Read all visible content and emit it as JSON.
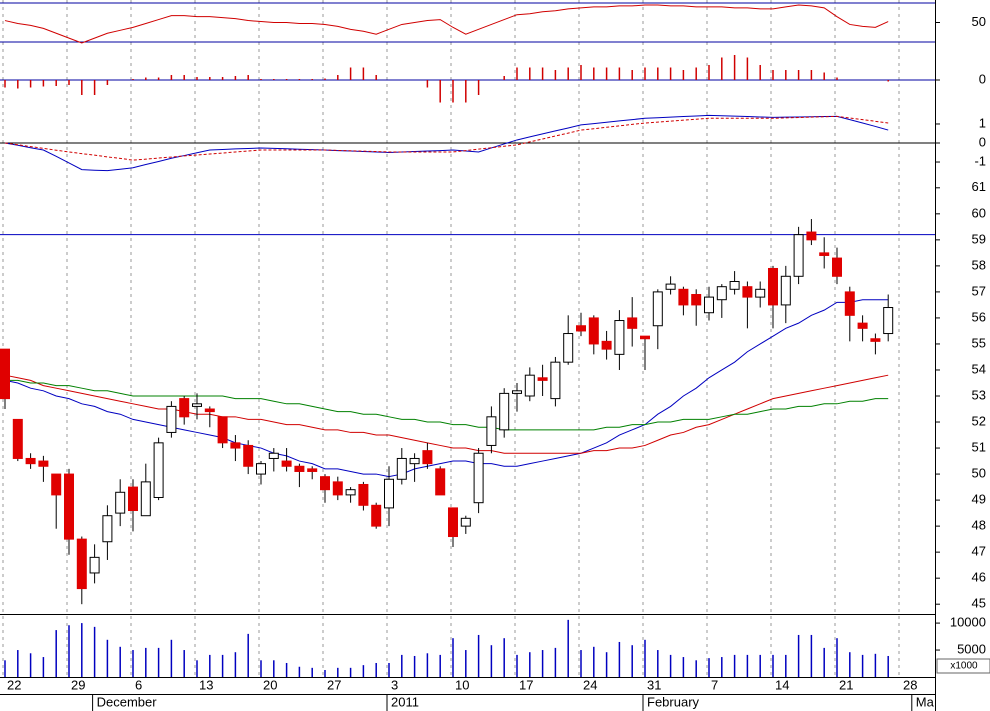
{
  "chart_data": [
    {
      "type": "line",
      "ylim": [
        30,
        70
      ],
      "yticks": [
        50
      ],
      "series": [
        {
          "color": "#d00000",
          "values": [
            52,
            49,
            47,
            44,
            39,
            34,
            29,
            34,
            39,
            42,
            45,
            49,
            53,
            57,
            57,
            56,
            56,
            55,
            54,
            52,
            51,
            50,
            50,
            49,
            49,
            48,
            46,
            43,
            41,
            38,
            43,
            48,
            50,
            52,
            53,
            45,
            38,
            43,
            48,
            53,
            58,
            59,
            61,
            62,
            64,
            65,
            66,
            66,
            67,
            67,
            68,
            68,
            67,
            67,
            66,
            66,
            66,
            65,
            65,
            64,
            64,
            66,
            68,
            67,
            65,
            56,
            48,
            46,
            45,
            51,
            null,
            null
          ]
        }
      ]
    },
    {
      "type": "bar",
      "ylim": [
        -0.5,
        0.5
      ],
      "yticks": [
        0
      ],
      "color": "#d00000",
      "values": [
        -0.15,
        -0.17,
        -0.15,
        -0.13,
        -0.12,
        -0.1,
        -0.3,
        -0.3,
        -0.1,
        0,
        0.02,
        0.05,
        0.05,
        0.1,
        0.1,
        0.06,
        0.06,
        0.06,
        0.08,
        0.1,
        0.02,
        0.02,
        0.02,
        0.02,
        0.02,
        0.03,
        0.1,
        0.25,
        0.25,
        0.1,
        0,
        0,
        0,
        -0.15,
        -0.45,
        -0.45,
        -0.45,
        -0.3,
        0,
        0.08,
        0.25,
        0.25,
        0.25,
        0.2,
        0.25,
        0.3,
        0.25,
        0.25,
        0.25,
        0.2,
        0.25,
        0.25,
        0.25,
        0.2,
        0.25,
        0.3,
        0.45,
        0.5,
        0.45,
        0.3,
        0.2,
        0.2,
        0.2,
        0.2,
        0.15,
        0.05,
        0,
        0,
        0,
        -0.03,
        null,
        null
      ]
    },
    {
      "type": "line",
      "ylim": [
        -1.84,
        1.84
      ],
      "yticks": [
        1,
        0,
        -1
      ],
      "series": [
        {
          "color": "#0000c0",
          "values": [
            0,
            -0.12,
            -0.25,
            -0.37,
            -0.7,
            -1.05,
            -1.4,
            -1.43,
            -1.45,
            -1.38,
            -1.3,
            -1.13,
            -0.97,
            -0.8,
            -0.66,
            -0.51,
            -0.37,
            -0.34,
            -0.31,
            -0.29,
            -0.26,
            -0.28,
            -0.3,
            -0.33,
            -0.35,
            -0.37,
            -0.4,
            -0.42,
            -0.45,
            -0.47,
            -0.5,
            -0.47,
            -0.45,
            -0.42,
            -0.4,
            -0.37,
            -0.42,
            -0.47,
            -0.26,
            -0.05,
            0.16,
            0.32,
            0.48,
            0.64,
            0.79,
            0.95,
            1.02,
            1.09,
            1.16,
            1.23,
            1.3,
            1.33,
            1.36,
            1.39,
            1.42,
            1.45,
            1.43,
            1.41,
            1.39,
            1.37,
            1.35,
            1.36,
            1.37,
            1.38,
            1.39,
            1.4,
            1.23,
            1.05,
            0.87,
            0.68,
            null,
            null
          ]
        },
        {
          "color": "#d00000",
          "dash": true,
          "values": [
            0,
            -0.09,
            -0.19,
            -0.28,
            -0.38,
            -0.47,
            -0.56,
            -0.64,
            -0.73,
            -0.81,
            -0.9,
            -0.85,
            -0.79,
            -0.74,
            -0.68,
            -0.63,
            -0.58,
            -0.53,
            -0.47,
            -0.42,
            -0.37,
            -0.37,
            -0.37,
            -0.37,
            -0.37,
            -0.37,
            -0.39,
            -0.41,
            -0.43,
            -0.45,
            -0.47,
            -0.47,
            -0.47,
            -0.47,
            -0.47,
            -0.47,
            -0.4,
            -0.32,
            -0.25,
            -0.17,
            -0.1,
            0.06,
            0.21,
            0.37,
            0.52,
            0.68,
            0.75,
            0.83,
            0.9,
            0.98,
            1.05,
            1.1,
            1.15,
            1.2,
            1.25,
            1.3,
            1.3,
            1.3,
            1.3,
            1.3,
            1.3,
            1.32,
            1.34,
            1.36,
            1.38,
            1.4,
            1.31,
            1.23,
            1.14,
            1.05,
            null,
            null
          ]
        }
      ]
    },
    {
      "type": "candlestick",
      "ylim": [
        44.7,
        61.3
      ],
      "yticks": [
        45,
        46,
        47,
        48,
        49,
        50,
        51,
        52,
        53,
        54,
        55,
        56,
        57,
        58,
        59,
        60,
        61
      ],
      "hline": 59.2,
      "hline_color": "#0000c0",
      "up_color": "#ffffff",
      "down_color": "#e00000",
      "open": [
        54.8,
        52.1,
        50.6,
        50.5,
        50.0,
        50.0,
        47.5,
        46.2,
        47.4,
        48.5,
        49.5,
        48.4,
        49.1,
        51.6,
        52.9,
        52.6,
        52.5,
        52.2,
        51.2,
        51.1,
        50.0,
        50.6,
        50.5,
        50.3,
        50.2,
        49.9,
        49.7,
        49.2,
        49.6,
        48.8,
        48.7,
        49.8,
        50.4,
        50.9,
        50.2,
        48.7,
        48.0,
        48.9,
        51.1,
        51.7,
        53.1,
        53.0,
        53.7,
        52.9,
        54.3,
        55.7,
        56.0,
        55.1,
        54.6,
        56.0,
        55.3,
        55.7,
        57.1,
        57.1,
        56.9,
        56.2,
        56.7,
        57.1,
        57.2,
        56.8,
        57.9,
        56.5,
        57.6,
        59.3,
        58.5,
        58.3,
        57.0,
        55.8,
        55.2,
        55.4,
        null,
        null
      ],
      "high": [
        54.8,
        52.1,
        50.8,
        50.7,
        50.0,
        50.2,
        47.6,
        47.3,
        48.8,
        49.8,
        49.8,
        50.4,
        51.4,
        52.8,
        53.0,
        53.1,
        52.6,
        52.2,
        51.5,
        51.3,
        50.5,
        51.0,
        51.0,
        50.4,
        50.3,
        50.0,
        49.9,
        49.5,
        49.7,
        48.9,
        50.3,
        51.0,
        50.8,
        51.2,
        50.3,
        48.7,
        48.4,
        51.0,
        52.6,
        53.3,
        53.5,
        54.1,
        54.2,
        54.5,
        56.1,
        56.2,
        56.1,
        55.5,
        56.3,
        56.8,
        55.3,
        57.1,
        57.6,
        57.2,
        57.1,
        57.2,
        57.3,
        57.8,
        57.4,
        57.4,
        58.0,
        58.0,
        59.5,
        59.8,
        59.1,
        58.7,
        57.2,
        56.1,
        55.4,
        56.9,
        null,
        null
      ],
      "low": [
        52.5,
        50.5,
        50.2,
        49.7,
        47.9,
        46.9,
        45.0,
        45.8,
        46.7,
        48.0,
        47.8,
        48.4,
        49.0,
        51.4,
        51.9,
        52.1,
        51.8,
        51.0,
        50.5,
        50.0,
        49.6,
        50.1,
        50.1,
        49.5,
        49.8,
        48.9,
        49.0,
        48.9,
        48.6,
        47.9,
        48.0,
        49.6,
        49.7,
        50.2,
        49.2,
        47.2,
        47.7,
        48.5,
        50.8,
        51.4,
        52.4,
        52.8,
        53.0,
        52.6,
        54.2,
        55.3,
        54.6,
        54.4,
        54.0,
        54.9,
        54.0,
        54.8,
        56.9,
        56.1,
        55.7,
        55.9,
        56.0,
        56.9,
        55.6,
        56.4,
        55.6,
        55.8,
        57.3,
        58.8,
        57.9,
        57.3,
        55.1,
        55.1,
        54.6,
        55.1,
        null,
        null
      ],
      "close": [
        52.9,
        50.6,
        50.4,
        50.3,
        49.2,
        47.5,
        45.6,
        46.8,
        48.4,
        49.3,
        48.6,
        49.7,
        51.2,
        52.6,
        52.2,
        52.7,
        52.4,
        51.2,
        51.0,
        50.3,
        50.4,
        50.8,
        50.3,
        50.1,
        50.1,
        49.4,
        49.2,
        49.4,
        48.8,
        48.0,
        49.8,
        50.6,
        50.6,
        50.4,
        49.2,
        47.6,
        48.3,
        50.8,
        52.2,
        53.1,
        53.2,
        53.8,
        53.6,
        54.3,
        55.4,
        55.5,
        55.0,
        54.8,
        55.9,
        55.6,
        55.2,
        57.0,
        57.3,
        56.5,
        56.5,
        56.8,
        57.2,
        57.4,
        56.8,
        57.1,
        56.5,
        57.6,
        59.2,
        59.0,
        58.4,
        57.6,
        56.1,
        55.6,
        55.1,
        56.4,
        null,
        null
      ],
      "series": [
        {
          "color": "#0000c0",
          "values": [
            53.6,
            53.5,
            53.3,
            53.2,
            53.0,
            52.9,
            52.7,
            52.6,
            52.4,
            52.3,
            52.1,
            52.0,
            51.9,
            51.8,
            51.7,
            51.6,
            51.5,
            51.4,
            51.2,
            51.1,
            51.0,
            50.8,
            50.7,
            50.5,
            50.4,
            50.2,
            50.2,
            50.1,
            50.0,
            50.0,
            49.9,
            50.0,
            50.2,
            50.3,
            50.4,
            50.5,
            50.5,
            50.4,
            50.4,
            50.3,
            50.3,
            50.4,
            50.5,
            50.6,
            50.7,
            50.8,
            51.0,
            51.2,
            51.5,
            51.7,
            51.9,
            52.3,
            52.6,
            53.0,
            53.3,
            53.7,
            54.0,
            54.3,
            54.7,
            55.0,
            55.3,
            55.6,
            55.8,
            56.1,
            56.3,
            56.6,
            56.6,
            56.7,
            56.7,
            56.7,
            null,
            null
          ]
        },
        {
          "color": "#d00000",
          "values": [
            53.8,
            53.7,
            53.6,
            53.4,
            53.3,
            53.2,
            53.1,
            53.0,
            52.9,
            52.8,
            52.7,
            52.6,
            52.5,
            52.5,
            52.4,
            52.3,
            52.3,
            52.2,
            52.2,
            52.1,
            52.1,
            52.0,
            51.9,
            51.9,
            51.8,
            51.7,
            51.7,
            51.6,
            51.6,
            51.5,
            51.5,
            51.4,
            51.3,
            51.2,
            51.1,
            51.0,
            51.0,
            50.9,
            50.9,
            50.8,
            50.8,
            50.8,
            50.8,
            50.8,
            50.8,
            50.8,
            50.9,
            50.9,
            51.0,
            51.0,
            51.1,
            51.3,
            51.5,
            51.6,
            51.8,
            51.9,
            52.1,
            52.3,
            52.5,
            52.7,
            52.9,
            53.0,
            53.1,
            53.2,
            53.3,
            53.4,
            53.5,
            53.6,
            53.7,
            53.8,
            null,
            null
          ]
        },
        {
          "color": "#008000",
          "values": [
            53.6,
            53.6,
            53.5,
            53.5,
            53.4,
            53.4,
            53.3,
            53.2,
            53.2,
            53.1,
            53.0,
            53.0,
            53.0,
            53.0,
            53.0,
            53.0,
            53.0,
            53.0,
            52.9,
            52.9,
            52.9,
            52.8,
            52.7,
            52.7,
            52.6,
            52.5,
            52.4,
            52.4,
            52.3,
            52.3,
            52.2,
            52.1,
            52.1,
            52.0,
            52.0,
            51.9,
            51.9,
            51.8,
            51.8,
            51.7,
            51.7,
            51.7,
            51.7,
            51.7,
            51.7,
            51.7,
            51.7,
            51.8,
            51.8,
            51.9,
            51.9,
            52.0,
            52.0,
            52.1,
            52.1,
            52.1,
            52.2,
            52.3,
            52.3,
            52.4,
            52.5,
            52.5,
            52.6,
            52.6,
            52.7,
            52.7,
            52.8,
            52.8,
            52.9,
            52.9,
            null,
            null
          ]
        }
      ]
    },
    {
      "type": "bar",
      "ylim": [
        0,
        11500
      ],
      "yticks": [
        5000,
        10000
      ],
      "y_unit": "x1000",
      "color": "#0000c0",
      "values": [
        3100,
        5000,
        4400,
        3700,
        8700,
        9600,
        10000,
        9300,
        6900,
        5600,
        5000,
        5400,
        5400,
        6900,
        5000,
        3100,
        4100,
        4100,
        4600,
        8000,
        3100,
        3100,
        2600,
        1900,
        1700,
        1300,
        1700,
        1700,
        2200,
        2600,
        2600,
        4100,
        3900,
        4400,
        4100,
        7200,
        5000,
        7800,
        5900,
        7200,
        4100,
        4600,
        5000,
        5400,
        10600,
        5000,
        5600,
        4600,
        6500,
        5900,
        6900,
        5000,
        4100,
        3700,
        3100,
        3500,
        3700,
        4100,
        4100,
        4100,
        4100,
        4100,
        7800,
        7800,
        5400,
        7200,
        4600,
        4100,
        4300,
        3900,
        null,
        null
      ],
      "categories": [
        "22",
        null,
        null,
        null,
        null,
        "29",
        null,
        null,
        null,
        null,
        "6",
        null,
        null,
        null,
        null,
        "13",
        null,
        null,
        null,
        null,
        "20",
        null,
        null,
        null,
        null,
        "27",
        null,
        null,
        null,
        null,
        "3",
        null,
        null,
        null,
        null,
        "10",
        null,
        null,
        null,
        null,
        "17",
        null,
        null,
        null,
        null,
        "24",
        null,
        null,
        null,
        null,
        "31",
        null,
        null,
        null,
        null,
        "7",
        null,
        null,
        null,
        null,
        "14",
        null,
        null,
        null,
        null,
        "21",
        null,
        null,
        null,
        null,
        "28",
        null
      ],
      "category_groups": [
        null,
        null,
        null,
        null,
        null,
        null,
        null,
        "December",
        null,
        null,
        null,
        null,
        null,
        null,
        null,
        null,
        null,
        null,
        null,
        null,
        null,
        null,
        null,
        null,
        null,
        null,
        null,
        null,
        null,
        null,
        "2011",
        null,
        null,
        null,
        null,
        null,
        null,
        null,
        null,
        null,
        null,
        null,
        null,
        null,
        null,
        null,
        null,
        null,
        null,
        null,
        "February",
        null,
        null,
        null,
        null,
        null,
        null,
        null,
        null,
        null,
        null,
        null,
        null,
        null,
        null,
        null,
        null,
        null,
        null,
        null,
        null,
        "Ma"
      ]
    }
  ]
}
